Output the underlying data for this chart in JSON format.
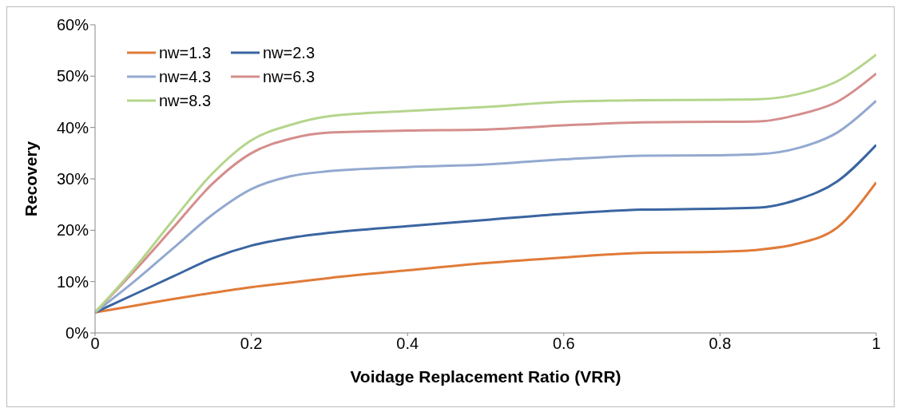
{
  "chart_data": {
    "type": "line",
    "xlabel": "Voidage Replacement Ratio (VRR)",
    "ylabel": "Recovery",
    "x": [
      0,
      0.05,
      0.1,
      0.15,
      0.2,
      0.25,
      0.3,
      0.4,
      0.5,
      0.6,
      0.7,
      0.8,
      0.85,
      0.9,
      0.95,
      1
    ],
    "series": [
      {
        "name": "nw=1.3",
        "color": "#e07b39",
        "values": [
          4,
          5.3,
          6.6,
          7.8,
          8.9,
          9.8,
          10.7,
          12.2,
          13.6,
          14.7,
          15.6,
          15.8,
          16.2,
          17.4,
          20.5,
          29.3
        ]
      },
      {
        "name": "nw=2.3",
        "color": "#3a65a0",
        "values": [
          4,
          7.5,
          11,
          14.5,
          17,
          18.5,
          19.5,
          20.8,
          22,
          23.2,
          24,
          24.2,
          24.4,
          26,
          29.5,
          36.6
        ]
      },
      {
        "name": "nw=4.3",
        "color": "#93a9d0",
        "values": [
          4,
          10,
          16.5,
          23,
          28,
          30.5,
          31.5,
          32.3,
          32.8,
          33.8,
          34.5,
          34.6,
          34.8,
          36,
          39,
          45.2
        ]
      },
      {
        "name": "nw=6.3",
        "color": "#d48e8c",
        "values": [
          4,
          12,
          20.5,
          29,
          35,
          37.8,
          39,
          39.4,
          39.6,
          40.4,
          41,
          41.1,
          41.2,
          42.5,
          45,
          50.5
        ]
      },
      {
        "name": "nw=8.3",
        "color": "#b5d58c",
        "values": [
          4,
          12.5,
          22,
          31,
          37.5,
          40.5,
          42.2,
          43.2,
          44,
          45,
          45.3,
          45.4,
          45.5,
          46.5,
          49,
          54.2
        ]
      }
    ],
    "xlim": [
      0,
      1
    ],
    "xticks": [
      0,
      0.2,
      0.4,
      0.6,
      0.8,
      1
    ],
    "ylim": [
      0,
      60
    ],
    "yticks": [
      {
        "value": 0,
        "label": "0%"
      },
      {
        "value": 10,
        "label": "10%"
      },
      {
        "value": 20,
        "label": "20%"
      },
      {
        "value": 30,
        "label": "30%"
      },
      {
        "value": 40,
        "label": "40%"
      },
      {
        "value": 50,
        "label": "50%"
      },
      {
        "value": 60,
        "label": "60%"
      }
    ],
    "grid": false,
    "legend": "top left",
    "marker": "none",
    "line_style": "solid"
  }
}
